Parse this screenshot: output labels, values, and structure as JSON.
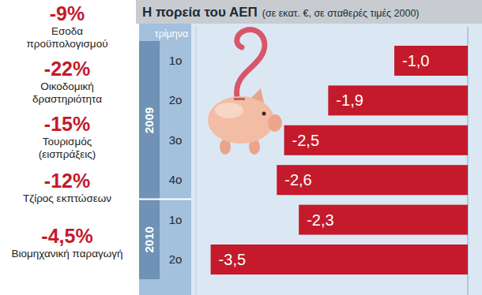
{
  "chart_data": {
    "type": "bar",
    "orientation": "horizontal",
    "title": "Η πορεία του ΑΕΠ",
    "subtitle": "(σε εκατ. €, σε σταθερές τιμές 2000)",
    "y_label": "τρίμηνα",
    "categories": [
      "1ο",
      "2ο",
      "3ο",
      "4ο",
      "1ο",
      "2ο"
    ],
    "groups": [
      {
        "label": "2009",
        "size": 4
      },
      {
        "label": "2010",
        "size": 2
      }
    ],
    "values": [
      -1.0,
      -1.9,
      -2.5,
      -2.6,
      -2.3,
      -3.5
    ],
    "value_labels": [
      "-1,0",
      "-1,9",
      "-2,5",
      "-2,6",
      "-2,3",
      "-3,5"
    ],
    "color": "#c41a2b",
    "xlim": [
      -3.7,
      0
    ],
    "data_labels": true,
    "tick_labels": false,
    "grid": false
  },
  "side_panel": [
    {
      "label": "-9%",
      "caption": [
        "Εσοδα",
        "προϋπολογισμού"
      ]
    },
    {
      "label": "-22%",
      "caption": [
        "Οικοδομική",
        "δραστηριότητα"
      ]
    },
    {
      "label": "-15%",
      "caption": [
        "Τουρισμός",
        "(εισπράξεις)"
      ]
    },
    {
      "label": "-12%",
      "caption": [
        "Τζίρος εκπτώσεων"
      ]
    },
    {
      "label": "-4,5%",
      "caption": [
        "Βιομηχανική παραγωγή"
      ]
    }
  ]
}
